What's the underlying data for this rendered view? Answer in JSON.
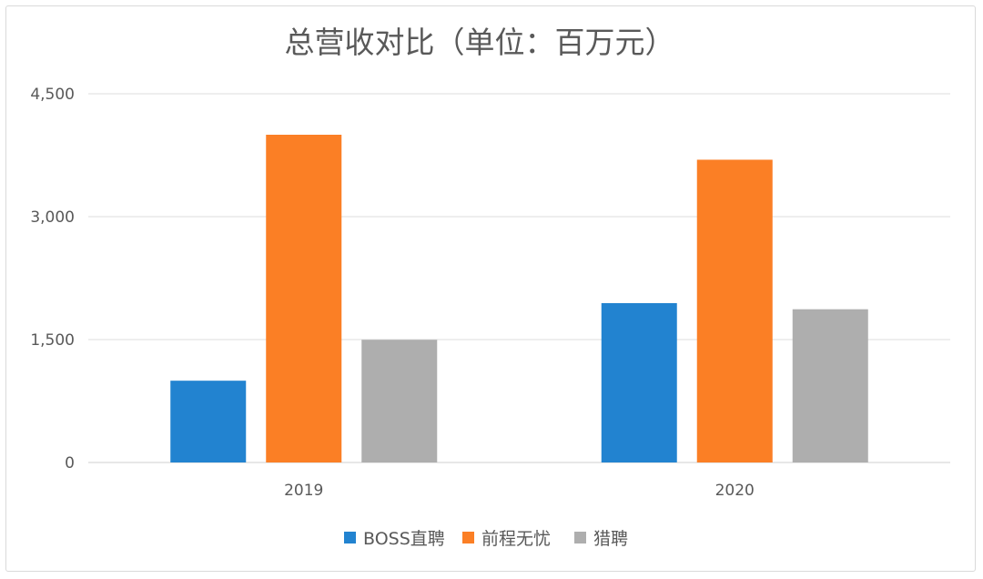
{
  "chart_data": {
    "type": "bar",
    "title": "总营收对比（单位：百万元）",
    "categories": [
      "2019",
      "2020"
    ],
    "series": [
      {
        "name": "BOSS直聘",
        "color": "#2283d0",
        "values": [
          998,
          1945
        ]
      },
      {
        "name": "前程无忧",
        "color": "#fb7f25",
        "values": [
          4000,
          3695
        ]
      },
      {
        "name": "猎聘",
        "color": "#aeaeae",
        "values": [
          1497,
          1870
        ]
      }
    ],
    "ylim": [
      0,
      4500
    ],
    "yticks": [
      0,
      1500,
      3000,
      4500
    ],
    "ytick_labels": [
      "0",
      "1,500",
      "3,000",
      "4,500"
    ],
    "grid": true,
    "legend": "bottom",
    "xlabel": "",
    "ylabel": ""
  }
}
